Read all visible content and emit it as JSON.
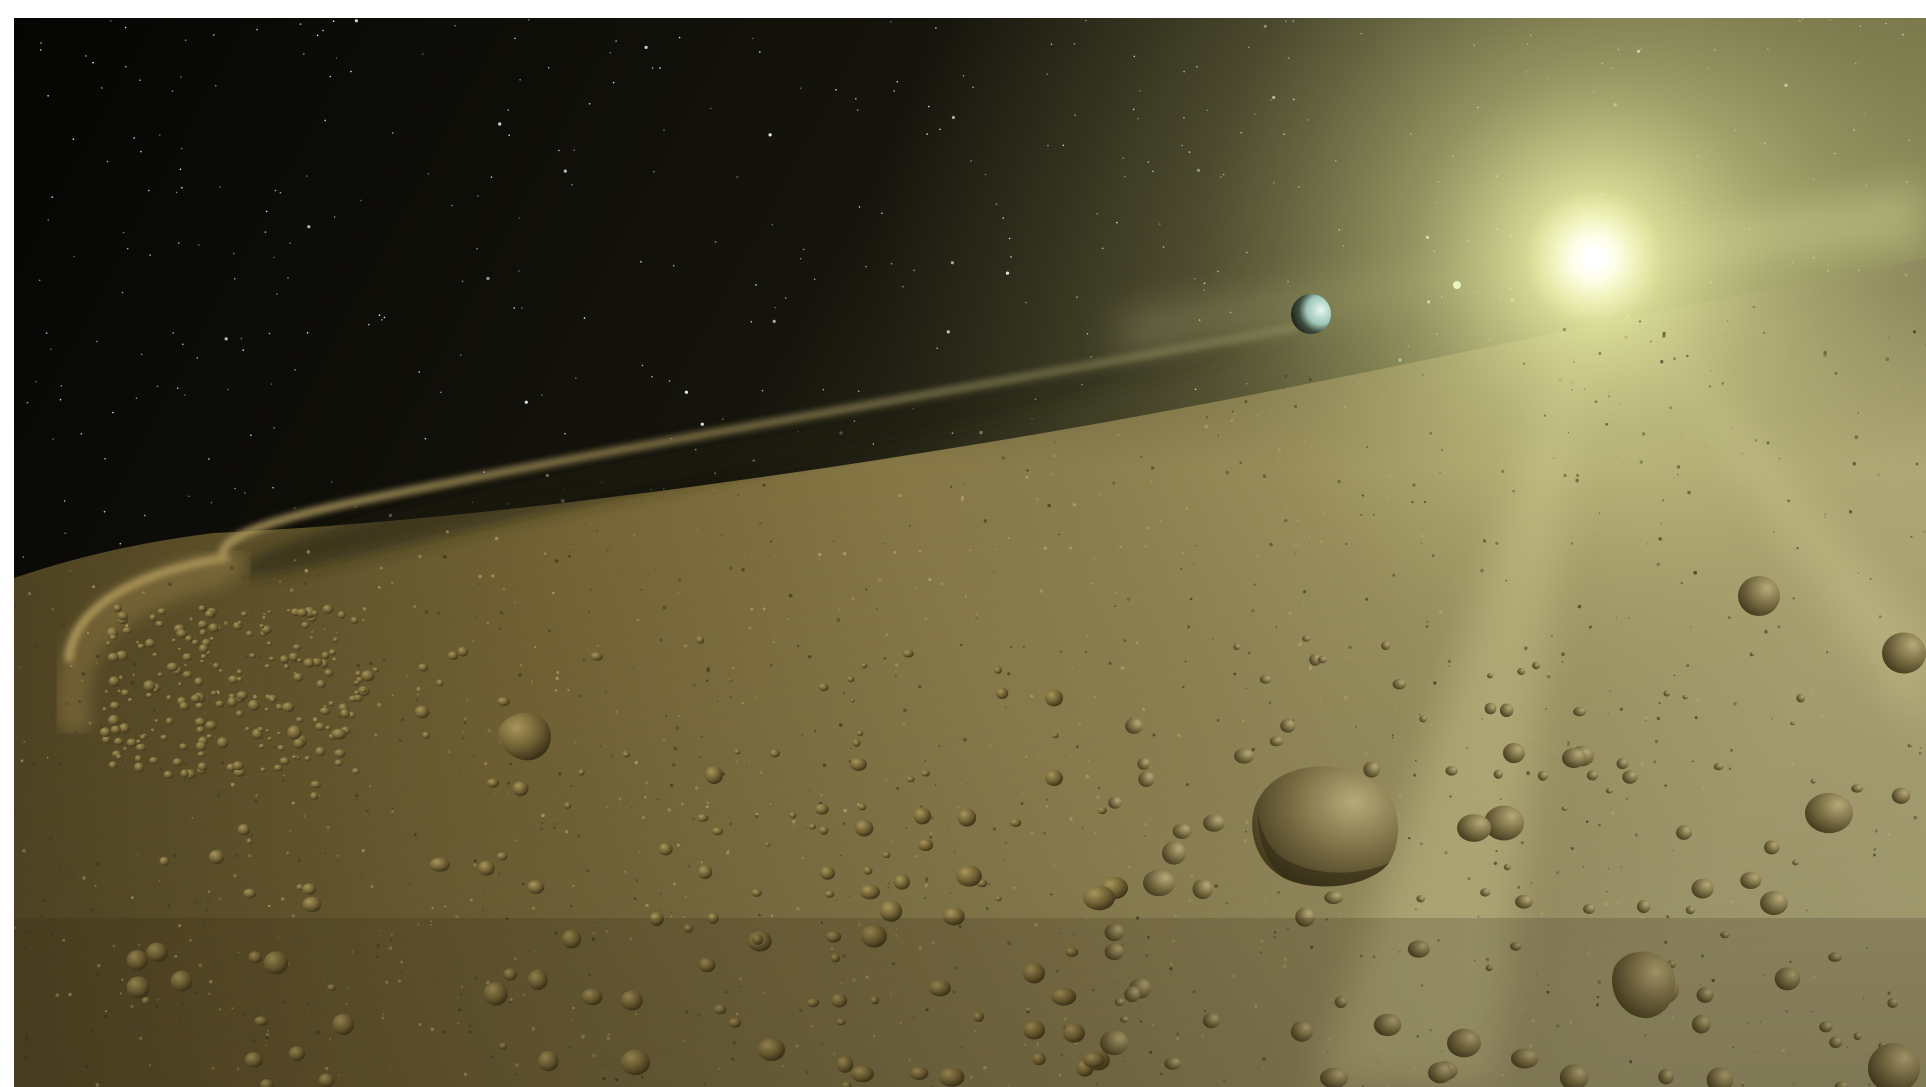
{
  "artwork": {
    "subject": "artist-concept-debris-disk",
    "colors": {
      "space": "#0b0a07",
      "dust": "#8a7a45",
      "dust_light": "#c9bf86",
      "star_core": "#ffffff",
      "star_glow": "#e8ec9a",
      "rock": "#6e5f33",
      "rock_dark": "#3e341a",
      "rock_light": "#a8965a",
      "planet_lit": "#cfe8e2",
      "background_stars": "#ffffff"
    }
  }
}
